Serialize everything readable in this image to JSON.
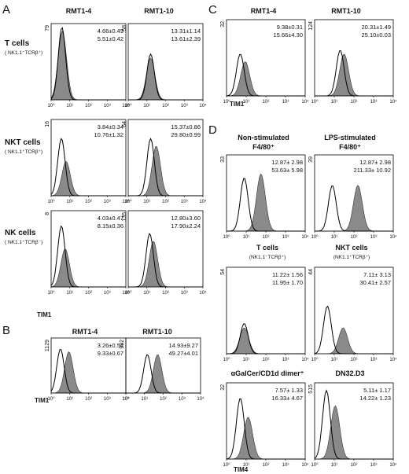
{
  "chart_data": {
    "type": "histogram-panels",
    "x_scale": "log",
    "x_ticks": [
      "10⁰",
      "10¹",
      "10²",
      "10³",
      "10⁴"
    ],
    "panel_letters": [
      "A",
      "B",
      "C",
      "D"
    ],
    "columns": [
      "RMT1-4",
      "RMT1-10"
    ],
    "panels": [
      {
        "id": "A-T-RMT1-4",
        "letter": "A",
        "col": "RMT1-4",
        "row_label": "T cells",
        "row_sub": "( NK1.1⁻TCRβ⁺)",
        "ymax": "79",
        "stats": [
          "4.66±0.49",
          "5.51±0.42"
        ],
        "peak_ctrl": 0.58,
        "peak_stain": 0.6,
        "h_ctrl": 0.95,
        "h_stain": 0.9
      },
      {
        "id": "A-T-RMT1-10",
        "letter": "A",
        "col": "RMT1-10",
        "ymax": "58",
        "stats": [
          "13.31±1.14",
          "13.61±2.39"
        ],
        "peak_ctrl": 1.2,
        "peak_stain": 1.2,
        "h_ctrl": 0.6,
        "h_stain": 0.55
      },
      {
        "id": "A-NKT-RMT1-4",
        "letter": "A",
        "col": "RMT1-4",
        "row_label": "NKT cells",
        "row_sub": "( NK1.1⁺TCRβ⁺)",
        "ymax": "16",
        "stats": [
          "3.84±0.34",
          "10.76±1.32"
        ],
        "peak_ctrl": 0.55,
        "peak_stain": 0.8,
        "h_ctrl": 0.75,
        "h_stain": 0.45
      },
      {
        "id": "A-NKT-RMT1-10",
        "letter": "A",
        "col": "RMT1-10",
        "ymax": "64",
        "stats": [
          "15.37±0.86",
          "29.80±0.99"
        ],
        "peak_ctrl": 1.2,
        "peak_stain": 1.5,
        "h_ctrl": 0.75,
        "h_stain": 0.65
      },
      {
        "id": "A-NK-RMT1-4",
        "letter": "A",
        "col": "RMT1-4",
        "row_label": "NK cells",
        "row_sub": "( NK1.1⁺TCRβ⁻)",
        "ymax": "8",
        "stats": [
          "4.03±0.47",
          "8.15±0.36"
        ],
        "peak_ctrl": 0.55,
        "peak_stain": 0.75,
        "h_ctrl": 0.8,
        "h_stain": 0.5
      },
      {
        "id": "A-NK-RMT1-10",
        "letter": "A",
        "col": "RMT1-10",
        "ymax": "135",
        "stats": [
          "12.80±3.60",
          "17.90±2.24"
        ],
        "peak_ctrl": 1.15,
        "peak_stain": 1.35,
        "h_ctrl": 0.7,
        "h_stain": 0.6
      },
      {
        "id": "B-RMT1-4",
        "letter": "B",
        "col": "RMT1-4",
        "ymax": "1129",
        "stats": [
          "3.26±0.54",
          "9.33±0.67"
        ],
        "peak_ctrl": 0.5,
        "peak_stain": 0.95,
        "h_ctrl": 0.8,
        "h_stain": 0.75
      },
      {
        "id": "B-RMT1-10",
        "letter": "B",
        "col": "RMT1-10",
        "ymax": "992",
        "stats": [
          "14.93±9.27",
          "49.27±4.01"
        ],
        "peak_ctrl": 1.15,
        "peak_stain": 1.7,
        "h_ctrl": 0.7,
        "h_stain": 0.7
      },
      {
        "id": "C-RMT1-4",
        "letter": "C",
        "col": "RMT1-4",
        "ymax": "32",
        "stats": [
          "9.38±0.31",
          "15.66±4.30"
        ],
        "peak_ctrl": 0.7,
        "peak_stain": 0.95,
        "h_ctrl": 0.55,
        "h_stain": 0.45
      },
      {
        "id": "C-RMT1-10",
        "letter": "C",
        "col": "RMT1-10",
        "ymax": "124",
        "stats": [
          "20.31±1.49",
          "25.10±0.03"
        ],
        "peak_ctrl": 1.3,
        "peak_stain": 1.5,
        "h_ctrl": 0.6,
        "h_stain": 0.55
      },
      {
        "id": "D-nonstim",
        "letter": "D",
        "title": "Non-stimulated",
        "title2": "F4/80⁺",
        "ymax": "33",
        "stats": [
          "12.87± 2.98",
          "53.63± 5.98"
        ],
        "peak_ctrl": 0.9,
        "peak_stain": 1.75,
        "h_ctrl": 0.7,
        "h_stain": 0.75
      },
      {
        "id": "D-lps",
        "letter": "D",
        "title": "LPS-stimulated",
        "title2": "F4/80⁺",
        "ymax": "39",
        "stats": [
          "12.87± 2.98",
          "211.33± 10.92"
        ],
        "peak_ctrl": 0.9,
        "peak_stain": 2.2,
        "h_ctrl": 0.6,
        "h_stain": 0.6
      },
      {
        "id": "D-T",
        "letter": "D",
        "title": "T cells",
        "title_sub": "(NK1.1⁻TCRβ⁺)",
        "ymax": "54",
        "stats": [
          "11.22± 1.56",
          "11.95± 1.70"
        ],
        "peak_ctrl": 0.9,
        "peak_stain": 0.9,
        "h_ctrl": 0.35,
        "h_stain": 0.3
      },
      {
        "id": "D-NKT",
        "letter": "D",
        "title": "NKT cells",
        "title_sub": "(NK1.1⁺TCRβ⁺)",
        "ymax": "44",
        "stats": [
          "7.11± 3.13",
          "30.41± 2.57"
        ],
        "peak_ctrl": 0.65,
        "peak_stain": 1.45,
        "h_ctrl": 0.55,
        "h_stain": 0.3
      },
      {
        "id": "D-aGalCer",
        "letter": "D",
        "title": "αGalCer/CD1d dimer⁺",
        "ymax": "32",
        "stats": [
          "7.57± 1.33",
          "16.33± 4.67"
        ],
        "peak_ctrl": 0.7,
        "peak_stain": 1.1,
        "h_ctrl": 0.8,
        "h_stain": 0.55
      },
      {
        "id": "D-DN32",
        "letter": "D",
        "title": "DN32.D3",
        "ymax": "515",
        "stats": [
          "5.11± 1.17",
          "14.22± 1.23"
        ],
        "peak_ctrl": 0.6,
        "peak_stain": 1.05,
        "h_ctrl": 0.9,
        "h_stain": 0.7
      }
    ],
    "axis_labels": {
      "A": "TIM1",
      "B": "TIM1",
      "C": "TIM1",
      "D": "TIM4"
    },
    "series": [
      {
        "name": "",
        "style": "open-line"
      },
      {
        "name": "",
        "style": "filled-gray"
      }
    ]
  },
  "colors": {
    "filled": "#8a8a8a",
    "filled_dark": "#4a4a4a",
    "line": "#000000"
  }
}
